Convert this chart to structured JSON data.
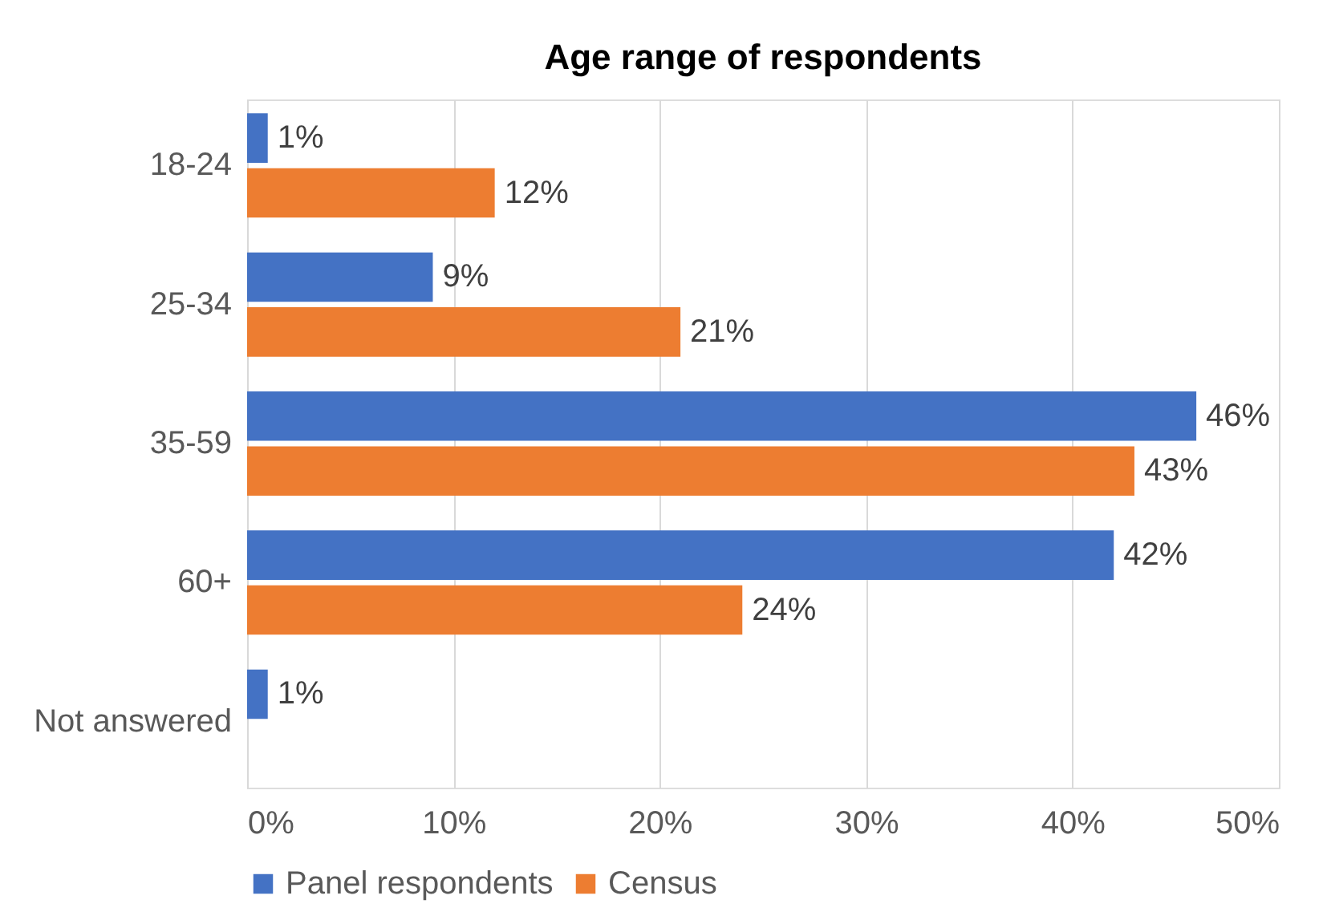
{
  "chart_data": {
    "type": "bar",
    "orientation": "horizontal",
    "title": "Age range of respondents",
    "categories": [
      "18-24",
      "25-34",
      "35-59",
      "60+",
      "Not answered"
    ],
    "series": [
      {
        "name": "Panel respondents",
        "color": "#4472c4",
        "values": [
          1,
          9,
          46,
          42,
          1
        ],
        "value_labels": [
          "1%",
          "9%",
          "46%",
          "42%",
          "1%"
        ]
      },
      {
        "name": "Census",
        "color": "#ed7d31",
        "values": [
          12,
          21,
          43,
          24,
          null
        ],
        "value_labels": [
          "12%",
          "21%",
          "43%",
          "24%",
          null
        ]
      }
    ],
    "xlim": [
      0,
      50
    ],
    "xticks": [
      {
        "value": 0,
        "label": "0%"
      },
      {
        "value": 10,
        "label": "10%"
      },
      {
        "value": 20,
        "label": "20%"
      },
      {
        "value": 30,
        "label": "30%"
      },
      {
        "value": 40,
        "label": "40%"
      },
      {
        "value": 50,
        "label": "50%"
      }
    ],
    "grid": "x",
    "legend": "bottom"
  }
}
